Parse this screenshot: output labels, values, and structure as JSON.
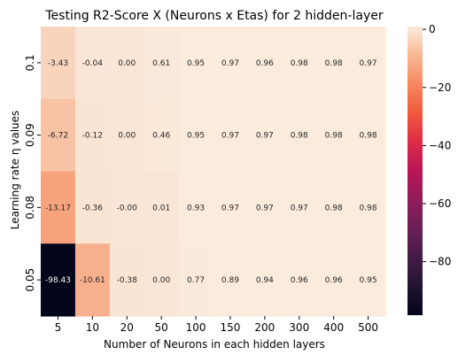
{
  "chart_data": {
    "type": "heatmap",
    "title": "Testing R2-Score X (Neurons x Etas) for 2 hidden-layer",
    "xlabel": "Number of Neurons in each hidden layers",
    "ylabel": "Learning rate η values",
    "x_categories": [
      "5",
      "10",
      "20",
      "50",
      "100",
      "150",
      "200",
      "300",
      "400",
      "500"
    ],
    "y_categories": [
      "0.1",
      "0.09",
      "0.08",
      "0.05"
    ],
    "values": [
      [
        -3.43,
        -0.04,
        0.0,
        0.61,
        0.95,
        0.97,
        0.96,
        0.98,
        0.98,
        0.97
      ],
      [
        -6.72,
        -0.12,
        0.0,
        0.46,
        0.95,
        0.97,
        0.97,
        0.98,
        0.98,
        0.98
      ],
      [
        -13.17,
        -0.36,
        -0.0,
        0.01,
        0.93,
        0.97,
        0.97,
        0.97,
        0.98,
        0.98
      ],
      [
        -98.43,
        -10.61,
        -0.38,
        0.0,
        0.77,
        0.89,
        0.94,
        0.96,
        0.96,
        0.95
      ]
    ],
    "cell_labels": [
      [
        "-3.43",
        "-0.04",
        "0.00",
        "0.61",
        "0.95",
        "0.97",
        "0.96",
        "0.98",
        "0.98",
        "0.97"
      ],
      [
        "-6.72",
        "-0.12",
        "0.00",
        "0.46",
        "0.95",
        "0.97",
        "0.97",
        "0.98",
        "0.98",
        "0.98"
      ],
      [
        "-13.17",
        "-0.36",
        "-0.00",
        "0.01",
        "0.93",
        "0.97",
        "0.97",
        "0.97",
        "0.98",
        "0.98"
      ],
      [
        "-98.43",
        "-10.61",
        "-0.38",
        "0.00",
        "0.77",
        "0.89",
        "0.94",
        "0.96",
        "0.96",
        "0.95"
      ]
    ],
    "colorbar": {
      "range": [
        -98.43,
        0.98
      ],
      "ticks": [
        0,
        -20,
        -40,
        -60,
        -80
      ],
      "tick_labels": [
        "0",
        "−20",
        "−40",
        "−60",
        "−80"
      ],
      "colormap": "rocket"
    },
    "legend_placement": "right",
    "grid": false
  }
}
